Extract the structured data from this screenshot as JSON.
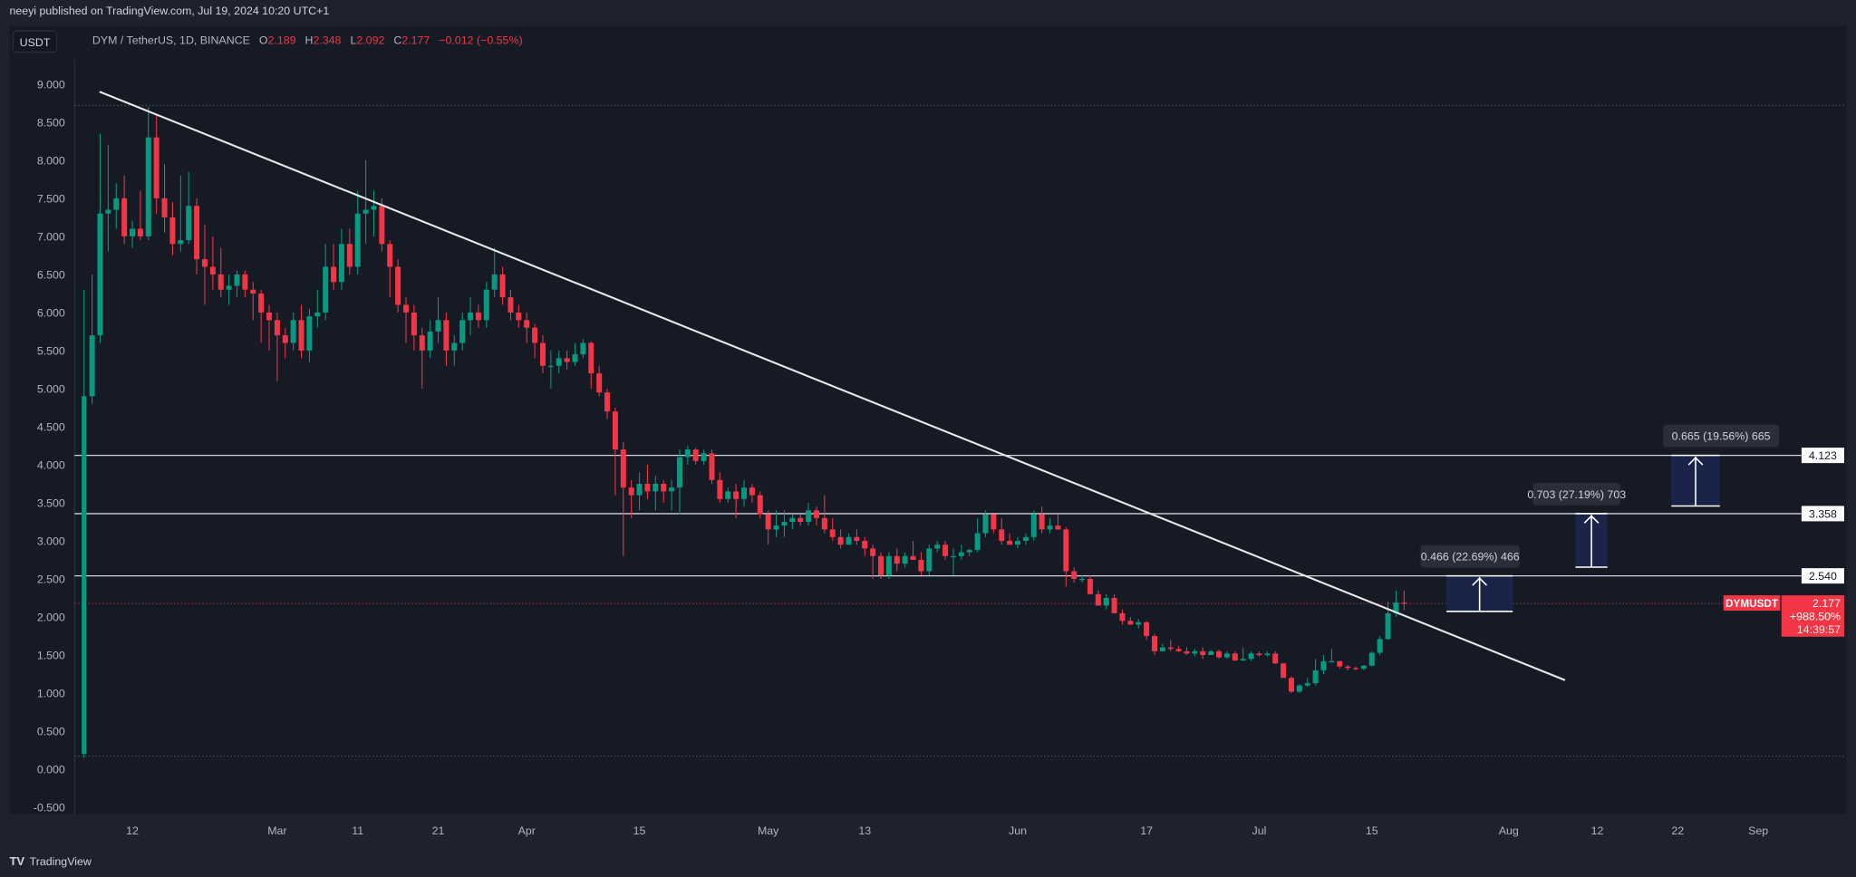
{
  "publisher_line": "neeyi published on TradingView.com, Jul 19, 2024 10:20 UTC+1",
  "currency_button": "USDT",
  "legend": {
    "symbol": "DYM / TetherUS, 1D, BINANCE",
    "o_label": "O",
    "o": "2.189",
    "h_label": "H",
    "h": "2.348",
    "l_label": "L",
    "l": "2.092",
    "c_label": "C",
    "c": "2.177",
    "change": "−0.012 (−0.55%)"
  },
  "colors": {
    "up": "#089981",
    "down": "#f23645",
    "background": "#161a25",
    "frame": "#1e222d",
    "trendline": "#e8e8e8",
    "measure_fill": "#1a2448"
  },
  "price_labels": {
    "levels": [
      "4.123",
      "3.358",
      "2.540"
    ],
    "current_price": "2.177",
    "current_change": "+988.50%",
    "countdown": "14:39:57",
    "symbol_tag": "DYMUSDT"
  },
  "measurements": [
    {
      "label": "0.466 (22.69%) 466",
      "from": 2.074,
      "to": 2.54
    },
    {
      "label": "0.703 (27.19%) 703",
      "from": 2.655,
      "to": 3.358
    },
    {
      "label": "0.665 (19.56%) 665",
      "from": 3.458,
      "to": 4.123
    }
  ],
  "footer": {
    "logo_text": "TradingView"
  },
  "chart_data": {
    "type": "candlestick",
    "title": "",
    "ylim": [
      -0.5,
      9.0
    ],
    "yticks": [
      "9.000",
      "8.500",
      "8.000",
      "7.500",
      "7.000",
      "6.500",
      "6.000",
      "5.500",
      "5.000",
      "4.500",
      "4.000",
      "3.500",
      "3.000",
      "2.500",
      "2.000",
      "1.500",
      "1.000",
      "0.500",
      "0.000",
      "-0.500"
    ],
    "xticks": [
      "12",
      "Mar",
      "11",
      "21",
      "Apr",
      "15",
      "May",
      "13",
      "Jun",
      "17",
      "Jul",
      "15",
      "Aug",
      "12",
      "22",
      "Sep"
    ],
    "x_start": "2024-02-06",
    "x_end": "2024-07-19",
    "horizontal_lines": [
      4.123,
      3.358,
      2.54
    ],
    "trendline": [
      {
        "date": "2024-02-08",
        "price": 8.9
      },
      {
        "date": "2024-08-08",
        "price": 1.17
      }
    ],
    "range_bounds": [
      8.72,
      0.17
    ],
    "ohlc": [
      [
        0.2,
        6.3,
        0.15,
        4.9
      ],
      [
        4.9,
        6.5,
        4.8,
        5.7
      ],
      [
        5.7,
        8.35,
        5.6,
        7.3
      ],
      [
        7.3,
        8.2,
        6.8,
        7.35
      ],
      [
        7.35,
        7.7,
        7.1,
        7.5
      ],
      [
        7.5,
        7.8,
        6.9,
        7.0
      ],
      [
        7.0,
        7.2,
        6.85,
        7.1
      ],
      [
        7.1,
        7.6,
        6.95,
        7.0
      ],
      [
        7.0,
        8.7,
        6.95,
        8.3
      ],
      [
        8.3,
        8.6,
        7.3,
        7.5
      ],
      [
        7.5,
        7.95,
        7.05,
        7.25
      ],
      [
        7.25,
        7.45,
        6.75,
        6.9
      ],
      [
        6.9,
        7.8,
        6.8,
        6.95
      ],
      [
        6.95,
        7.85,
        6.9,
        7.4
      ],
      [
        7.4,
        7.5,
        6.5,
        6.7
      ],
      [
        6.7,
        7.15,
        6.1,
        6.6
      ],
      [
        6.6,
        7.0,
        6.3,
        6.5
      ],
      [
        6.5,
        6.85,
        6.2,
        6.3
      ],
      [
        6.3,
        6.5,
        6.1,
        6.35
      ],
      [
        6.35,
        6.55,
        6.2,
        6.5
      ],
      [
        6.5,
        6.55,
        6.2,
        6.3
      ],
      [
        6.3,
        6.4,
        5.9,
        6.25
      ],
      [
        6.25,
        6.3,
        5.6,
        6.0
      ],
      [
        6.0,
        6.1,
        5.5,
        5.9
      ],
      [
        5.9,
        6.0,
        5.1,
        5.7
      ],
      [
        5.7,
        5.8,
        5.4,
        5.6
      ],
      [
        5.6,
        6.0,
        5.5,
        5.9
      ],
      [
        5.9,
        6.1,
        5.4,
        5.5
      ],
      [
        5.5,
        6.05,
        5.35,
        5.95
      ],
      [
        5.95,
        6.3,
        5.8,
        6.0
      ],
      [
        6.0,
        6.9,
        5.9,
        6.6
      ],
      [
        6.6,
        6.9,
        6.3,
        6.4
      ],
      [
        6.4,
        7.1,
        6.3,
        6.9
      ],
      [
        6.9,
        7.1,
        6.5,
        6.6
      ],
      [
        6.6,
        7.6,
        6.5,
        7.3
      ],
      [
        7.3,
        8.0,
        6.9,
        7.35
      ],
      [
        7.35,
        7.6,
        7.0,
        7.4
      ],
      [
        7.4,
        7.5,
        6.8,
        6.9
      ],
      [
        6.9,
        6.95,
        6.2,
        6.6
      ],
      [
        6.6,
        6.7,
        6.0,
        6.1
      ],
      [
        6.1,
        6.2,
        5.6,
        6.0
      ],
      [
        6.0,
        6.1,
        5.5,
        5.7
      ],
      [
        5.7,
        5.8,
        5.0,
        5.5
      ],
      [
        5.5,
        5.9,
        5.4,
        5.75
      ],
      [
        5.75,
        6.2,
        5.6,
        5.9
      ],
      [
        5.9,
        6.0,
        5.3,
        5.5
      ],
      [
        5.5,
        5.7,
        5.3,
        5.6
      ],
      [
        5.6,
        6.0,
        5.5,
        5.9
      ],
      [
        5.9,
        6.2,
        5.7,
        6.0
      ],
      [
        6.0,
        6.1,
        5.8,
        5.9
      ],
      [
        5.9,
        6.4,
        5.8,
        6.3
      ],
      [
        6.3,
        6.85,
        6.2,
        6.5
      ],
      [
        6.5,
        6.6,
        6.1,
        6.2
      ],
      [
        6.2,
        6.3,
        5.9,
        6.0
      ],
      [
        6.0,
        6.1,
        5.8,
        5.9
      ],
      [
        5.9,
        6.0,
        5.6,
        5.8
      ],
      [
        5.8,
        5.85,
        5.4,
        5.6
      ],
      [
        5.6,
        5.7,
        5.2,
        5.3
      ],
      [
        5.3,
        5.5,
        5.0,
        5.3
      ],
      [
        5.3,
        5.5,
        5.2,
        5.4
      ],
      [
        5.4,
        5.5,
        5.25,
        5.35
      ],
      [
        5.35,
        5.6,
        5.3,
        5.45
      ],
      [
        5.45,
        5.65,
        5.4,
        5.6
      ],
      [
        5.6,
        5.62,
        5.0,
        5.2
      ],
      [
        5.2,
        5.3,
        4.9,
        4.95
      ],
      [
        4.95,
        5.0,
        4.6,
        4.7
      ],
      [
        4.7,
        4.75,
        3.6,
        4.2
      ],
      [
        4.2,
        4.3,
        2.8,
        3.7
      ],
      [
        3.7,
        3.8,
        3.3,
        3.6
      ],
      [
        3.6,
        3.9,
        3.4,
        3.75
      ],
      [
        3.75,
        4.0,
        3.55,
        3.65
      ],
      [
        3.65,
        3.85,
        3.4,
        3.75
      ],
      [
        3.75,
        3.8,
        3.5,
        3.65
      ],
      [
        3.65,
        3.8,
        3.4,
        3.7
      ],
      [
        3.7,
        4.2,
        3.35,
        4.1
      ],
      [
        4.1,
        4.25,
        4.0,
        4.2
      ],
      [
        4.2,
        4.22,
        4.0,
        4.05
      ],
      [
        4.05,
        4.2,
        4.0,
        4.15
      ],
      [
        4.15,
        4.2,
        3.75,
        3.8
      ],
      [
        3.8,
        3.9,
        3.5,
        3.55
      ],
      [
        3.55,
        3.7,
        3.5,
        3.65
      ],
      [
        3.65,
        3.75,
        3.3,
        3.55
      ],
      [
        3.55,
        3.8,
        3.45,
        3.7
      ],
      [
        3.7,
        3.75,
        3.5,
        3.6
      ],
      [
        3.6,
        3.65,
        3.3,
        3.35
      ],
      [
        3.35,
        3.4,
        2.95,
        3.15
      ],
      [
        3.15,
        3.4,
        3.05,
        3.2
      ],
      [
        3.2,
        3.4,
        3.05,
        3.25
      ],
      [
        3.25,
        3.35,
        3.15,
        3.3
      ],
      [
        3.3,
        3.35,
        3.2,
        3.25
      ],
      [
        3.25,
        3.5,
        3.2,
        3.4
      ],
      [
        3.4,
        3.45,
        3.2,
        3.3
      ],
      [
        3.3,
        3.6,
        3.1,
        3.15
      ],
      [
        3.15,
        3.3,
        3.0,
        3.05
      ],
      [
        3.05,
        3.15,
        2.9,
        2.95
      ],
      [
        2.95,
        3.1,
        2.95,
        3.05
      ],
      [
        3.05,
        3.15,
        2.95,
        3.0
      ],
      [
        3.0,
        3.05,
        2.8,
        2.9
      ],
      [
        2.9,
        2.95,
        2.5,
        2.8
      ],
      [
        2.8,
        2.85,
        2.5,
        2.55
      ],
      [
        2.55,
        2.85,
        2.5,
        2.8
      ],
      [
        2.8,
        2.9,
        2.6,
        2.7
      ],
      [
        2.7,
        2.85,
        2.65,
        2.8
      ],
      [
        2.8,
        3.0,
        2.75,
        2.75
      ],
      [
        2.75,
        2.85,
        2.55,
        2.6
      ],
      [
        2.6,
        2.95,
        2.55,
        2.9
      ],
      [
        2.9,
        3.0,
        2.85,
        2.95
      ],
      [
        2.95,
        3.0,
        2.75,
        2.8
      ],
      [
        2.8,
        2.9,
        2.55,
        2.8
      ],
      [
        2.8,
        2.95,
        2.75,
        2.85
      ],
      [
        2.85,
        2.9,
        2.8,
        2.88
      ],
      [
        2.88,
        3.3,
        2.85,
        3.1
      ],
      [
        3.1,
        3.4,
        3.05,
        3.35
      ],
      [
        3.35,
        3.35,
        3.1,
        3.15
      ],
      [
        3.15,
        3.3,
        2.95,
        3.0
      ],
      [
        3.0,
        3.1,
        2.95,
        2.95
      ],
      [
        2.95,
        3.05,
        2.9,
        3.0
      ],
      [
        3.0,
        3.1,
        2.95,
        3.05
      ],
      [
        3.05,
        3.4,
        3.0,
        3.35
      ],
      [
        3.35,
        3.45,
        3.1,
        3.15
      ],
      [
        3.15,
        3.3,
        3.1,
        3.2
      ],
      [
        3.2,
        3.35,
        3.15,
        3.15
      ],
      [
        3.15,
        3.18,
        2.4,
        2.6
      ],
      [
        2.6,
        2.65,
        2.45,
        2.5
      ],
      [
        2.5,
        2.55,
        2.45,
        2.5
      ],
      [
        2.5,
        2.55,
        2.3,
        2.3
      ],
      [
        2.3,
        2.35,
        2.15,
        2.15
      ],
      [
        2.15,
        2.3,
        2.1,
        2.25
      ],
      [
        2.25,
        2.3,
        2.05,
        2.05
      ],
      [
        2.05,
        2.1,
        1.9,
        1.95
      ],
      [
        1.95,
        2.0,
        1.9,
        1.9
      ],
      [
        1.9,
        1.97,
        1.85,
        1.93
      ],
      [
        1.93,
        1.95,
        1.7,
        1.75
      ],
      [
        1.75,
        1.78,
        1.5,
        1.55
      ],
      [
        1.55,
        1.65,
        1.55,
        1.6
      ],
      [
        1.6,
        1.7,
        1.55,
        1.58
      ],
      [
        1.58,
        1.62,
        1.54,
        1.55
      ],
      [
        1.55,
        1.6,
        1.5,
        1.52
      ],
      [
        1.52,
        1.58,
        1.48,
        1.55
      ],
      [
        1.55,
        1.6,
        1.45,
        1.5
      ],
      [
        1.5,
        1.57,
        1.5,
        1.55
      ],
      [
        1.55,
        1.57,
        1.45,
        1.47
      ],
      [
        1.47,
        1.55,
        1.45,
        1.52
      ],
      [
        1.52,
        1.55,
        1.42,
        1.43
      ],
      [
        1.43,
        1.6,
        1.42,
        1.45
      ],
      [
        1.45,
        1.55,
        1.42,
        1.52
      ],
      [
        1.52,
        1.55,
        1.48,
        1.5
      ],
      [
        1.5,
        1.55,
        1.48,
        1.52
      ],
      [
        1.52,
        1.55,
        1.38,
        1.39
      ],
      [
        1.39,
        1.4,
        1.2,
        1.2
      ],
      [
        1.2,
        1.22,
        1.0,
        1.02
      ],
      [
        1.02,
        1.12,
        1.0,
        1.1
      ],
      [
        1.1,
        1.2,
        1.08,
        1.13
      ],
      [
        1.13,
        1.45,
        1.1,
        1.3
      ],
      [
        1.3,
        1.5,
        1.25,
        1.42
      ],
      [
        1.42,
        1.58,
        1.42,
        1.42
      ],
      [
        1.42,
        1.42,
        1.32,
        1.35
      ],
      [
        1.35,
        1.37,
        1.3,
        1.33
      ],
      [
        1.33,
        1.35,
        1.3,
        1.32
      ],
      [
        1.32,
        1.37,
        1.3,
        1.36
      ],
      [
        1.36,
        1.55,
        1.35,
        1.53
      ],
      [
        1.53,
        1.75,
        1.5,
        1.71
      ],
      [
        1.71,
        2.2,
        1.7,
        2.05
      ],
      [
        2.05,
        2.35,
        2.0,
        2.19
      ],
      [
        2.189,
        2.348,
        2.092,
        2.177
      ]
    ]
  }
}
